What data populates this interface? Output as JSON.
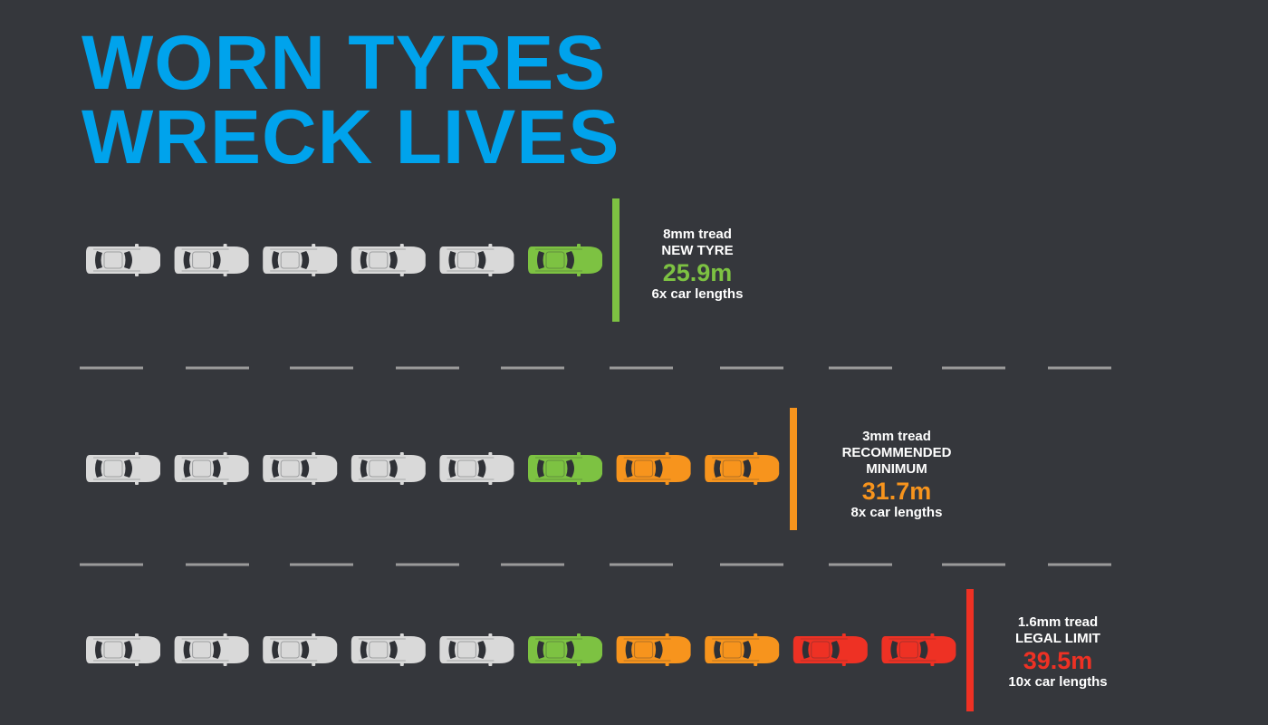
{
  "title": {
    "line1": "WORN TYRES",
    "line2": "WRECK LIVES"
  },
  "colors": {
    "background": "#35373c",
    "title": "#00a3ec",
    "neutral_car": "#d9d9d9",
    "new_tyre": "#7dc242",
    "recommended": "#f7941d",
    "legal_limit": "#ee3124",
    "lane_marking": "#9a9a9a"
  },
  "rows": [
    {
      "tread": "8mm tread",
      "status": "NEW TYRE",
      "distance": "25.9m",
      "lengths": "6x car lengths",
      "car_count": 6,
      "car_colors": [
        "neutral",
        "neutral",
        "neutral",
        "neutral",
        "neutral",
        "green"
      ],
      "accent": "#7dc242"
    },
    {
      "tread": "3mm tread",
      "status": "RECOMMENDED MINIMUM",
      "distance": "31.7m",
      "lengths": "8x car lengths",
      "car_count": 8,
      "car_colors": [
        "neutral",
        "neutral",
        "neutral",
        "neutral",
        "neutral",
        "green",
        "orange",
        "orange"
      ],
      "accent": "#f7941d"
    },
    {
      "tread": "1.6mm tread",
      "status": "LEGAL LIMIT",
      "distance": "39.5m",
      "lengths": "10x car lengths",
      "car_count": 10,
      "car_colors": [
        "neutral",
        "neutral",
        "neutral",
        "neutral",
        "neutral",
        "green",
        "orange",
        "orange",
        "red",
        "red"
      ],
      "accent": "#ee3124"
    }
  ]
}
